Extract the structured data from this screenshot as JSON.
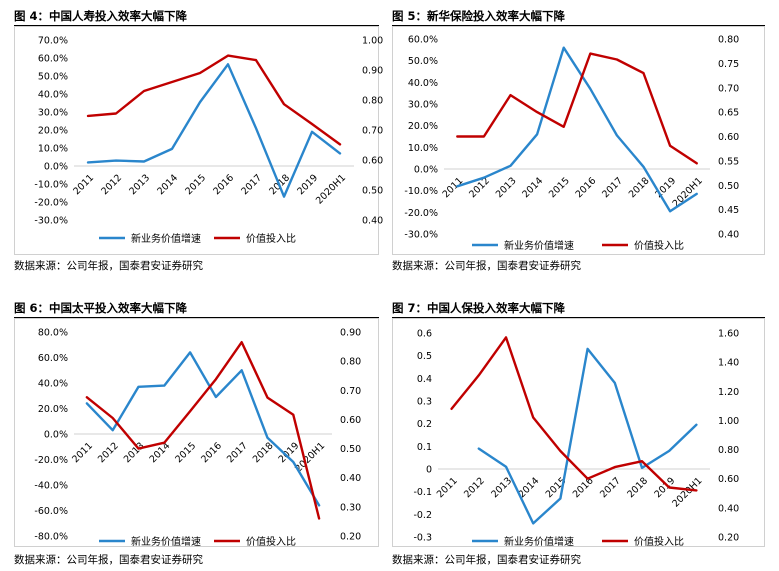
{
  "page": {
    "background": "#ffffff"
  },
  "colors": {
    "blue": "#2a86cc",
    "red": "#c00000",
    "grid": "#d0d0d0"
  },
  "charts": [
    {
      "title": "图 4：中国人寿投入效率大幅下降",
      "source": "数据来源：公司年报，国泰君安证券研究",
      "chart_data": {
        "type": "line",
        "categories": [
          "2011",
          "2012",
          "2013",
          "2014",
          "2015",
          "2016",
          "2017",
          "2018",
          "2019",
          "2020H1"
        ],
        "series": [
          {
            "name": "新业务价值增速",
            "axis": "left",
            "color": "#2a86cc",
            "values": [
              0.02,
              0.03,
              0.025,
              0.095,
              0.355,
              0.565,
              0.21,
              -0.17,
              0.19,
              0.07
            ]
          },
          {
            "name": "价值投入比",
            "axis": "right",
            "color": "#c00000",
            "values": [
              0.747,
              0.755,
              0.83,
              0.86,
              0.89,
              0.948,
              0.933,
              0.786,
              0.72,
              0.652
            ]
          }
        ],
        "left_axis": {
          "ticks": [
            "70.0%",
            "60.0%",
            "50.0%",
            "40.0%",
            "30.0%",
            "20.0%",
            "10.0%",
            "0.0%",
            "-10.0%",
            "-20.0%",
            "-30.0%"
          ],
          "min": -0.3,
          "max": 0.7
        },
        "right_axis": {
          "ticks": [
            "1.00",
            "0.90",
            "0.80",
            "0.70",
            "0.60",
            "0.50",
            "0.40"
          ],
          "min": 0.4,
          "max": 1.0
        },
        "legend": "bottom",
        "grid": false
      }
    },
    {
      "title": "图 5：新华保险投入效率大幅下降",
      "source": "数据来源：公司年报，国泰君安证券研究",
      "chart_data": {
        "type": "line",
        "categories": [
          "2011",
          "2012",
          "2013",
          "2014",
          "2015",
          "2016",
          "2017",
          "2018",
          "2019",
          "2020H1"
        ],
        "series": [
          {
            "name": "新业务价值增速",
            "axis": "left",
            "color": "#2a86cc",
            "values": [
              -0.08,
              -0.04,
              0.015,
              0.16,
              0.56,
              0.37,
              0.155,
              0.01,
              -0.195,
              -0.115
            ]
          },
          {
            "name": "价值投入比",
            "axis": "right",
            "color": "#c00000",
            "values": [
              0.6,
              0.6,
              0.685,
              0.65,
              0.62,
              0.77,
              0.758,
              0.73,
              0.581,
              0.545
            ]
          }
        ],
        "left_axis": {
          "ticks": [
            "60.0%",
            "50.0%",
            "40.0%",
            "30.0%",
            "20.0%",
            "10.0%",
            "0.0%",
            "-10.0%",
            "-20.0%",
            "-30.0%"
          ],
          "min": -0.3,
          "max": 0.6
        },
        "right_axis": {
          "ticks": [
            "0.80",
            "0.75",
            "0.70",
            "0.65",
            "0.60",
            "0.55",
            "0.50",
            "0.45",
            "0.40"
          ],
          "min": 0.4,
          "max": 0.8
        },
        "legend": "bottom",
        "grid": false
      }
    },
    {
      "title": "图 6：中国太平投入效率大幅下降",
      "source": "数据来源：公司年报，国泰君安证券研究",
      "chart_data": {
        "type": "line",
        "categories": [
          "2011",
          "2012",
          "2013",
          "2014",
          "2015",
          "2016",
          "2017",
          "2018",
          "2019",
          "2020H1"
        ],
        "series": [
          {
            "name": "新业务价值增速",
            "axis": "left",
            "color": "#2a86cc",
            "values": [
              0.24,
              0.03,
              0.37,
              0.38,
              0.64,
              0.29,
              0.5,
              -0.03,
              -0.22,
              -0.56
            ]
          },
          {
            "name": "价值投入比",
            "axis": "right",
            "color": "#c00000",
            "values": [
              0.676,
              0.605,
              0.5,
              0.52,
              0.628,
              0.738,
              0.865,
              0.675,
              0.616,
              0.26
            ]
          }
        ],
        "left_axis": {
          "ticks": [
            "80.0%",
            "60.0%",
            "40.0%",
            "20.0%",
            "0.0%",
            "-20.0%",
            "-40.0%",
            "-60.0%",
            "-80.0%"
          ],
          "min": -0.8,
          "max": 0.8
        },
        "right_axis": {
          "ticks": [
            "0.90",
            "0.80",
            "0.70",
            "0.60",
            "0.50",
            "0.40",
            "0.30",
            "0.20"
          ],
          "min": 0.2,
          "max": 0.9
        },
        "legend": "bottom",
        "grid": false
      }
    },
    {
      "title": "图 7：中国人保投入效率大幅下降",
      "source": "数据来源：公司年报，国泰君安证券研究",
      "chart_data": {
        "type": "line",
        "categories": [
          "2011",
          "2012",
          "2013",
          "2014",
          "2015",
          "2016",
          "2017",
          "2018",
          "2019",
          "2020H1"
        ],
        "series": [
          {
            "name": "新业务价值增速",
            "axis": "left",
            "color": "#2a86cc",
            "values": [
              null,
              0.09,
              0.01,
              -0.24,
              -0.13,
              0.53,
              0.38,
              0.005,
              0.08,
              0.195
            ]
          },
          {
            "name": "价值投入比",
            "axis": "right",
            "color": "#c00000",
            "values": [
              1.08,
              1.31,
              1.57,
              1.02,
              0.79,
              0.6,
              0.68,
              0.72,
              0.54,
              0.52
            ]
          }
        ],
        "left_axis": {
          "ticks": [
            "0.6",
            "0.5",
            "0.4",
            "0.3",
            "0.2",
            "0.1",
            "0",
            "-0.1",
            "-0.2",
            "-0.3"
          ],
          "min": -0.3,
          "max": 0.6
        },
        "right_axis": {
          "ticks": [
            "1.60",
            "1.40",
            "1.20",
            "1.00",
            "0.80",
            "0.60",
            "0.40",
            "0.20"
          ],
          "min": 0.2,
          "max": 1.6
        },
        "legend": "bottom",
        "grid": false
      }
    }
  ]
}
